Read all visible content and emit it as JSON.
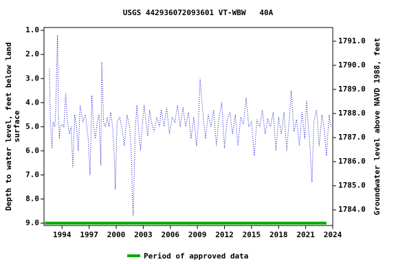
{
  "chart_data": {
    "type": "line",
    "title": "USGS 442936072093601 VT-WBW   40A",
    "y_label": [
      "Depth to water level, feet below land",
      "surface"
    ],
    "y2_label": "Groundwater level above NAVD 1988, feet",
    "xlim": [
      1992,
      2024
    ],
    "xticks": [
      1994,
      1997,
      2000,
      2003,
      2006,
      2009,
      2012,
      2015,
      2018,
      2021,
      2024
    ],
    "ylim": [
      0.88,
      9.1
    ],
    "y_inverted": true,
    "yticks": [
      {
        "value": 1,
        "label": "1.0"
      },
      {
        "value": 2,
        "label": "2.0"
      },
      {
        "value": 3,
        "label": "3.0"
      },
      {
        "value": 4,
        "label": "4.0"
      },
      {
        "value": 5,
        "label": "5.0"
      },
      {
        "value": 6,
        "label": "6.0"
      },
      {
        "value": 7,
        "label": "7.0"
      },
      {
        "value": 8,
        "label": "8.0"
      },
      {
        "value": 9,
        "label": "9.0"
      }
    ],
    "y2lim": [
      1791.57,
      1783.35
    ],
    "y2ticks": [
      {
        "value": 1791,
        "label": "1791.0"
      },
      {
        "value": 1790,
        "label": "1790.0"
      },
      {
        "value": 1789,
        "label": "1789.0"
      },
      {
        "value": 1788,
        "label": "1788.0"
      },
      {
        "value": 1787,
        "label": "1787.0"
      },
      {
        "value": 1786,
        "label": "1786.0"
      },
      {
        "value": 1785,
        "label": "1785.0"
      },
      {
        "value": 1784,
        "label": "1784.0"
      }
    ],
    "x": [
      1992.6,
      1992.7,
      1992.8,
      1992.9,
      1993.0,
      1993.2,
      1993.3,
      1993.4,
      1993.5,
      1993.6,
      1993.7,
      1993.8,
      1994.0,
      1994.2,
      1994.4,
      1994.6,
      1994.8,
      1995.0,
      1995.2,
      1995.4,
      1995.6,
      1995.8,
      1996.0,
      1996.3,
      1996.6,
      1996.9,
      1997.1,
      1997.3,
      1997.5,
      1997.7,
      1997.9,
      1998.1,
      1998.3,
      1998.4,
      1998.6,
      1998.8,
      1999.0,
      1999.2,
      1999.4,
      1999.6,
      1999.8,
      1999.9,
      2000.1,
      2000.4,
      2000.7,
      2000.9,
      2001.2,
      2001.5,
      2001.7,
      2001.8,
      2001.9,
      2002.1,
      2002.3,
      2002.5,
      2002.7,
      2002.9,
      2003.1,
      2003.3,
      2003.5,
      2003.7,
      2003.9,
      2004.2,
      2004.5,
      2004.8,
      2005.0,
      2005.3,
      2005.6,
      2005.9,
      2006.2,
      2006.5,
      2006.8,
      2007.1,
      2007.4,
      2007.7,
      2008.0,
      2008.3,
      2008.6,
      2008.9,
      2009.1,
      2009.3,
      2009.6,
      2009.9,
      2010.2,
      2010.5,
      2010.8,
      2011.1,
      2011.4,
      2011.7,
      2012.0,
      2012.3,
      2012.6,
      2012.9,
      2013.2,
      2013.5,
      2013.8,
      2014.1,
      2014.4,
      2014.7,
      2015.0,
      2015.3,
      2015.6,
      2015.9,
      2016.2,
      2016.5,
      2016.8,
      2017.1,
      2017.4,
      2017.7,
      2018.0,
      2018.3,
      2018.6,
      2018.9,
      2019.2,
      2019.4,
      2019.7,
      2020.0,
      2020.3,
      2020.6,
      2020.9,
      2021.1,
      2021.3,
      2021.5,
      2021.7,
      2021.9,
      2022.2,
      2022.5,
      2022.8,
      2023.1,
      2023.3,
      2023.6,
      2023.8
    ],
    "series": [
      {
        "color": "#0000cc",
        "values": [
          2.6,
          4.5,
          5.5,
          5.9,
          4.8,
          5.0,
          4.3,
          2.7,
          1.2,
          4.5,
          5.5,
          5.0,
          4.9,
          5.0,
          3.6,
          4.8,
          5.3,
          5.0,
          6.7,
          4.5,
          5.0,
          6.0,
          4.1,
          4.8,
          4.5,
          5.5,
          7.0,
          3.7,
          5.0,
          5.5,
          4.8,
          4.5,
          6.6,
          2.3,
          4.8,
          5.0,
          4.6,
          5.0,
          4.4,
          5.0,
          6.3,
          7.6,
          4.8,
          4.6,
          5.2,
          5.8,
          4.5,
          5.0,
          6.3,
          8.2,
          8.7,
          5.2,
          4.1,
          5.2,
          6.0,
          4.9,
          4.1,
          4.8,
          5.4,
          4.3,
          4.8,
          5.2,
          4.6,
          5.0,
          4.3,
          5.0,
          4.2,
          5.3,
          4.6,
          4.8,
          4.1,
          5.0,
          4.2,
          5.0,
          4.4,
          5.5,
          4.6,
          5.8,
          4.9,
          3.0,
          4.4,
          5.5,
          4.5,
          5.0,
          4.3,
          5.8,
          4.6,
          4.0,
          5.9,
          4.7,
          4.4,
          5.3,
          4.5,
          5.8,
          4.6,
          4.9,
          3.8,
          5.0,
          4.8,
          6.2,
          4.7,
          5.0,
          4.3,
          5.3,
          4.7,
          5.0,
          4.4,
          6.0,
          4.6,
          5.3,
          4.4,
          6.0,
          4.6,
          3.5,
          5.2,
          4.7,
          5.8,
          4.4,
          5.5,
          3.9,
          5.0,
          6.0,
          7.3,
          4.8,
          4.3,
          5.8,
          4.5,
          5.2,
          6.2,
          4.5,
          5.0
        ]
      }
    ],
    "approved_period": {
      "name": "Period of approved data",
      "color": "#00aa00",
      "x": [
        1992.1,
        2023.3
      ],
      "y": 9.0
    }
  }
}
